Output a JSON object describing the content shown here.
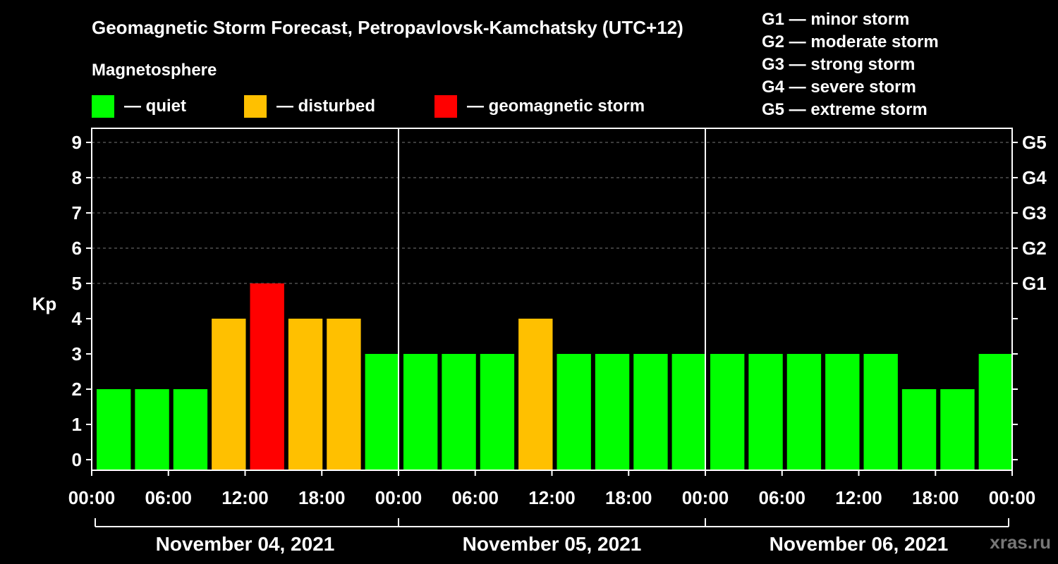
{
  "title": "Geomagnetic Storm Forecast, Petropavlovsk-Kamchatsky (UTC+12)",
  "subtitle": "Magnetosphere",
  "legend": [
    {
      "label": "— quiet",
      "color": "#00ff00"
    },
    {
      "label": "— disturbed",
      "color": "#ffc000"
    },
    {
      "label": "— geomagnetic storm",
      "color": "#ff0000"
    }
  ],
  "storm_levels": [
    "G1 — minor storm",
    "G2 — moderate storm",
    "G3 — strong storm",
    "G4 — severe storm",
    "G5 — extreme storm"
  ],
  "watermark": "xras.ru",
  "chart_data": {
    "type": "bar",
    "ylabel": "Kp",
    "ylim": [
      0,
      9
    ],
    "yticks": [
      "0",
      "1",
      "2",
      "3",
      "4",
      "5",
      "6",
      "7",
      "8",
      "9"
    ],
    "right_axis_labels": [
      {
        "kp": 5,
        "label": "G1"
      },
      {
        "kp": 6,
        "label": "G2"
      },
      {
        "kp": 7,
        "label": "G3"
      },
      {
        "kp": 8,
        "label": "G4"
      },
      {
        "kp": 9,
        "label": "G5"
      }
    ],
    "x_tick_labels": [
      "00:00",
      "06:00",
      "12:00",
      "18:00",
      "00:00",
      "06:00",
      "12:00",
      "18:00",
      "00:00",
      "06:00",
      "12:00",
      "18:00",
      "00:00"
    ],
    "days": [
      "November 04, 2021",
      "November 05, 2021",
      "November 06, 2021"
    ],
    "interval_hours": 3,
    "values": [
      2,
      2,
      2,
      4,
      5,
      4,
      4,
      3,
      3,
      3,
      3,
      4,
      3,
      3,
      3,
      3,
      3,
      3,
      3,
      3,
      3,
      2,
      2,
      3
    ],
    "colors": {
      "quiet": "#00ff00",
      "disturbed": "#ffc000",
      "storm": "#ff0000"
    },
    "grid": true
  }
}
